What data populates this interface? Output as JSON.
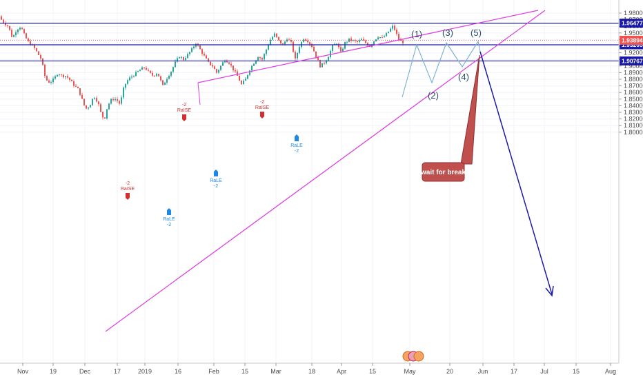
{
  "chart_data": {
    "type": "candlestick",
    "y_ticks": [
      "1.98000",
      "1.97000",
      "1.96000",
      "1.95000",
      "1.94000",
      "1.93000",
      "1.92000",
      "1.91000",
      "1.90000",
      "1.89000",
      "1.88000",
      "1.87000",
      "1.86000",
      "1.85000",
      "1.84000",
      "1.83000",
      "1.82000",
      "1.81000",
      "1.80000"
    ],
    "x_ticks": [
      "Nov",
      "19",
      "Dec",
      "17",
      "2019",
      "16",
      "Feb",
      "15",
      "Mar",
      "18",
      "Apr",
      "15",
      "May",
      "20",
      "Jun",
      "17",
      "Jul",
      "15",
      "Aug"
    ],
    "ylim": [
      1.795,
      1.984
    ],
    "price_levels": [
      {
        "label": "1.96477",
        "value": 1.96477,
        "color": "#1a1aa6"
      },
      {
        "label": "1.93205",
        "value": 1.93205,
        "color": "#1a1aa6"
      },
      {
        "label": "1.90767",
        "value": 1.90767,
        "color": "#1a1aa6"
      }
    ],
    "last_price": {
      "label": "1.93894",
      "value": 1.93894,
      "color": "#ef5350"
    },
    "wave_labels": [
      "(1)",
      "(2)",
      "(3)",
      "(4)",
      "(5)"
    ],
    "annotation": "wait for break",
    "signals": [
      {
        "kind": "sell",
        "top": "-2",
        "text": "RaISE"
      },
      {
        "kind": "buy",
        "text": "RaLE",
        "bottom": "-2"
      },
      {
        "kind": "sell",
        "top": "-2",
        "text": "RaISE"
      },
      {
        "kind": "buy",
        "text": "RaLE",
        "bottom": "-2"
      },
      {
        "kind": "sell",
        "top": "-2",
        "text": "RaISE"
      },
      {
        "kind": "buy",
        "text": "RaLE",
        "bottom": "-2"
      }
    ],
    "colors": {
      "up": "#26a69a",
      "down": "#ef5350",
      "trendline": "#e040e0",
      "projection": "#1a1aa6",
      "wave_path": "#7fb3d5"
    }
  }
}
